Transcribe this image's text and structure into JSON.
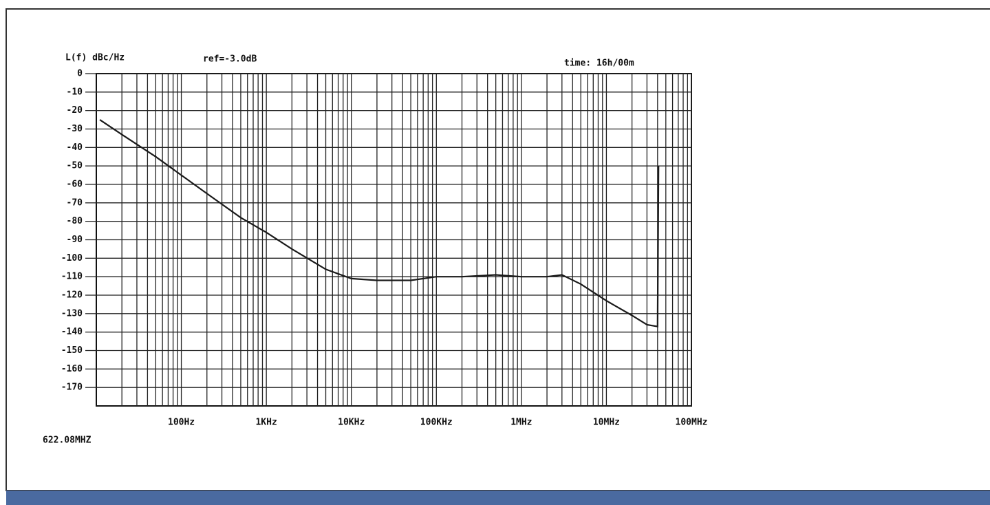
{
  "chart_data": {
    "type": "line",
    "y_axis_label": "L(f) dBc/Hz",
    "annotations": [
      "ref=-3.0dB",
      "time: 16h/00m",
      "622.08MHZ"
    ],
    "x": [
      11,
      20,
      50,
      100,
      200,
      500,
      1000,
      2000,
      5000,
      10000,
      20000,
      50000,
      100000,
      200000,
      500000,
      1000000,
      2000000,
      3000000,
      5000000,
      10000000,
      20000000,
      30000000,
      40000000,
      41000000
    ],
    "values": [
      -25,
      -33,
      -45,
      -55,
      -65,
      -78,
      -86,
      -95,
      -106,
      -111,
      -112,
      -112,
      -110,
      -110,
      -109,
      -110,
      -110,
      -109,
      -114,
      -123,
      -131,
      -136,
      -137,
      -50
    ],
    "color": "#1a1a1a",
    "xscale": "log",
    "xlim": [
      10,
      100000000
    ],
    "xticks": [
      {
        "value": 100,
        "label": "100Hz"
      },
      {
        "value": 1000,
        "label": "1KHz"
      },
      {
        "value": 10000,
        "label": "10KHz"
      },
      {
        "value": 100000,
        "label": "100KHz"
      },
      {
        "value": 1000000,
        "label": "1MHz"
      },
      {
        "value": 10000000,
        "label": "10MHz"
      },
      {
        "value": 100000000,
        "label": "100MHz"
      }
    ],
    "ylim": [
      -180,
      0
    ],
    "yticks": [
      0,
      -10,
      -20,
      -30,
      -40,
      -50,
      -60,
      -70,
      -80,
      -90,
      -100,
      -110,
      -120,
      -130,
      -140,
      -150,
      -160,
      -170
    ],
    "grid": true
  }
}
